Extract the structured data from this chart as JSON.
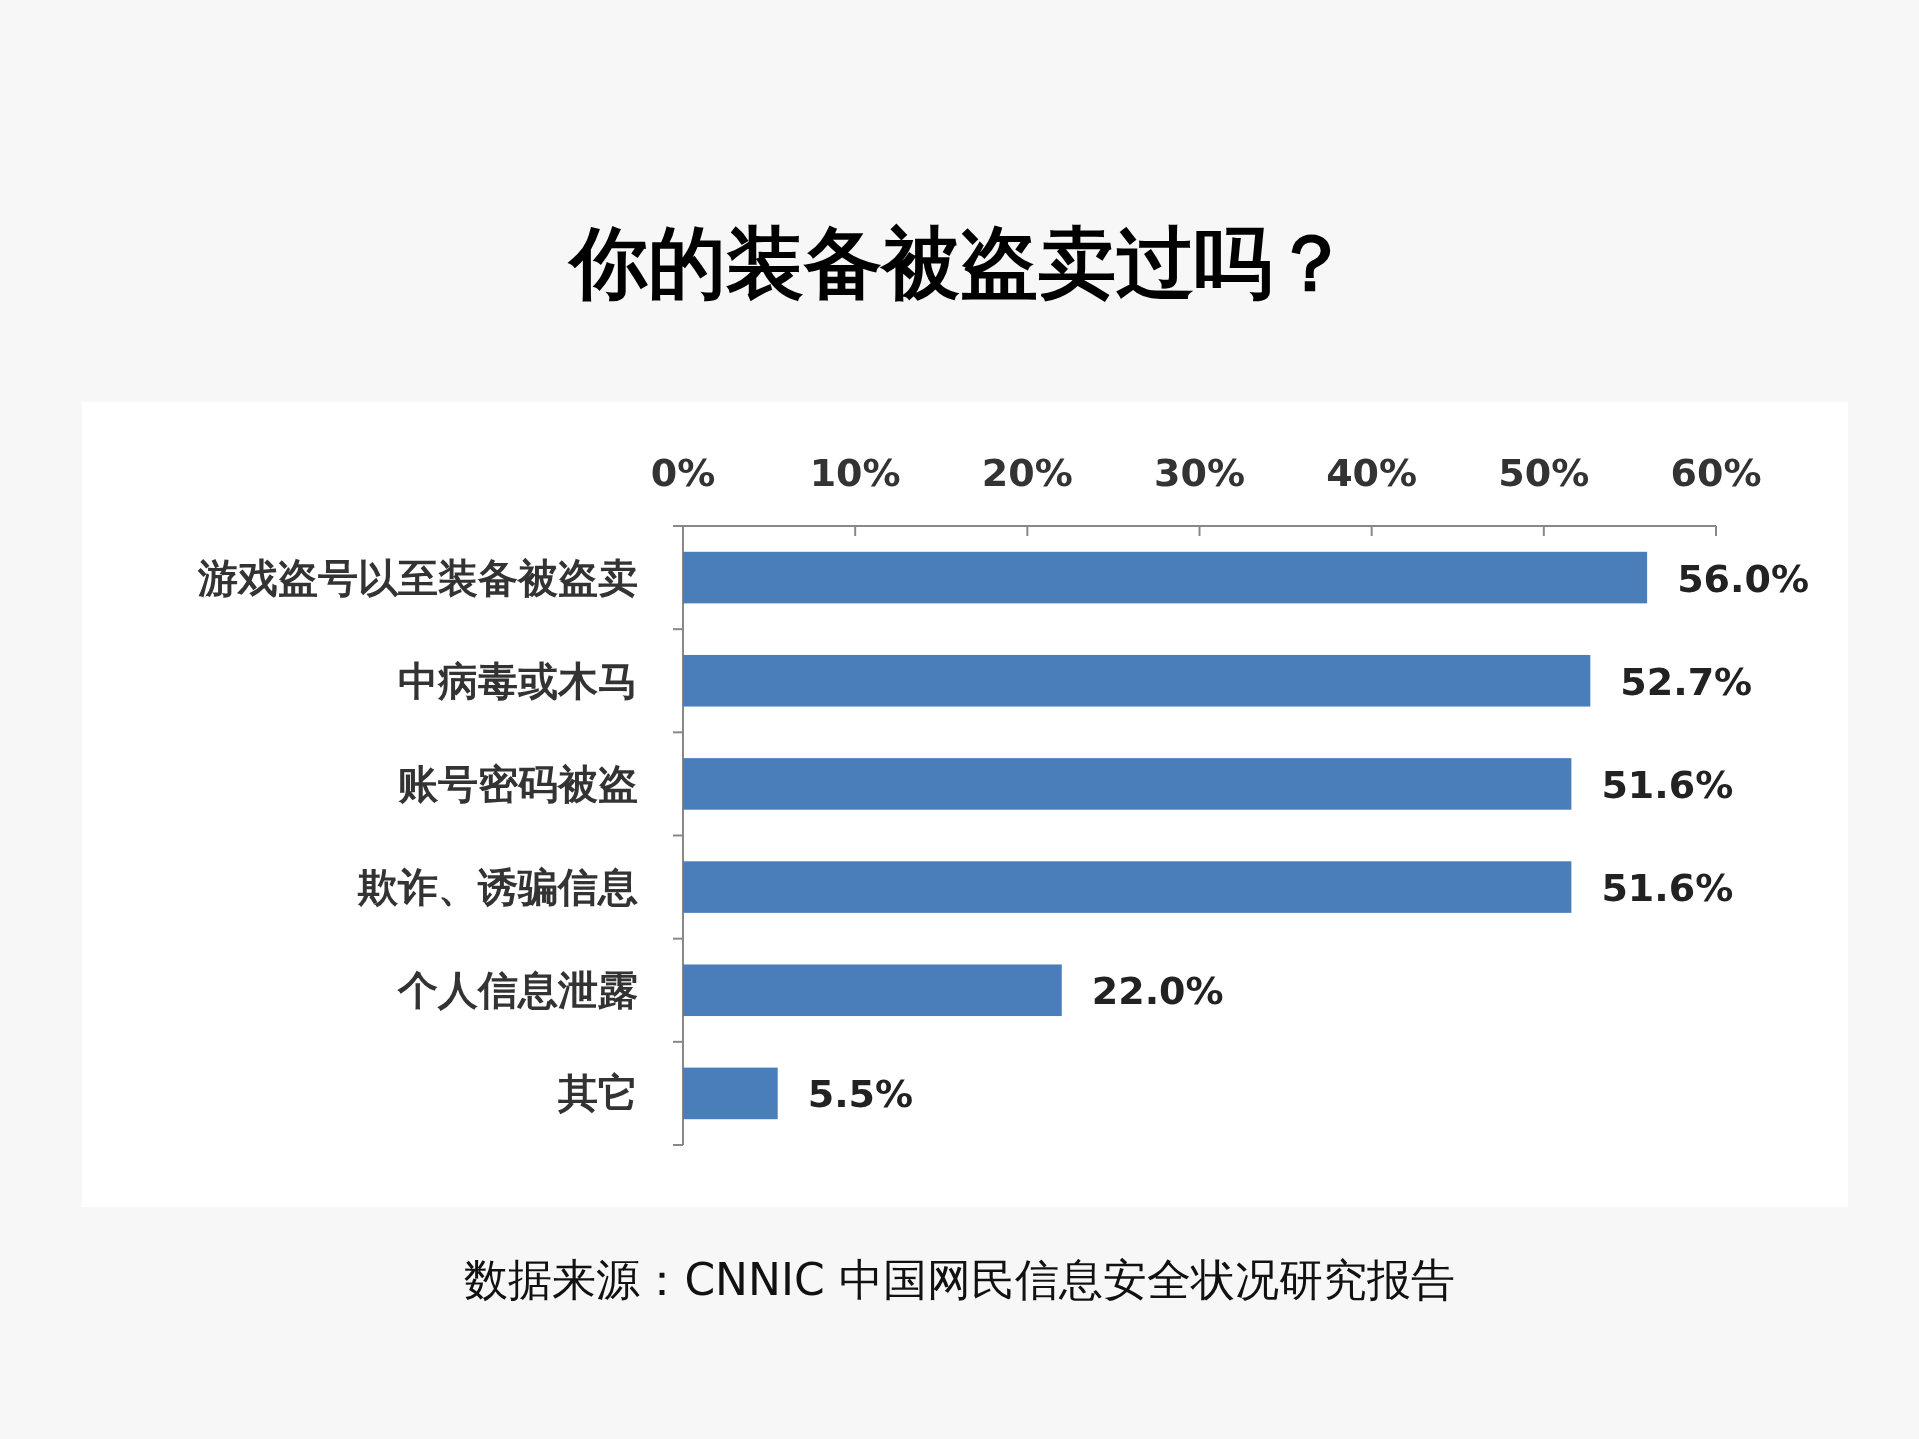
{
  "chart_data": {
    "type": "bar",
    "orientation": "horizontal",
    "title": "你的装备被盗卖过吗？",
    "categories": [
      "游戏盗号以至装备被盗卖",
      "中病毒或木马",
      "账号密码被盗",
      "欺诈、诱骗信息",
      "个人信息泄露",
      "其它"
    ],
    "values": [
      56.0,
      52.7,
      51.6,
      51.6,
      22.0,
      5.5
    ],
    "value_labels": [
      "56.0%",
      "52.7%",
      "51.6%",
      "51.6%",
      "22.0%",
      "5.5%"
    ],
    "color": "#4a7ebb",
    "xlim": [
      0,
      60
    ],
    "xticks": [
      {
        "value": 0,
        "label": "0%"
      },
      {
        "value": 10,
        "label": "10%"
      },
      {
        "value": 20,
        "label": "20%"
      },
      {
        "value": 30,
        "label": "30%"
      },
      {
        "value": 40,
        "label": "40%"
      },
      {
        "value": 50,
        "label": "50%"
      },
      {
        "value": 60,
        "label": "60%"
      }
    ],
    "grid": false,
    "annotations": [
      "数据来源：CNNIC 中国网民信息安全状况研究报告"
    ]
  }
}
